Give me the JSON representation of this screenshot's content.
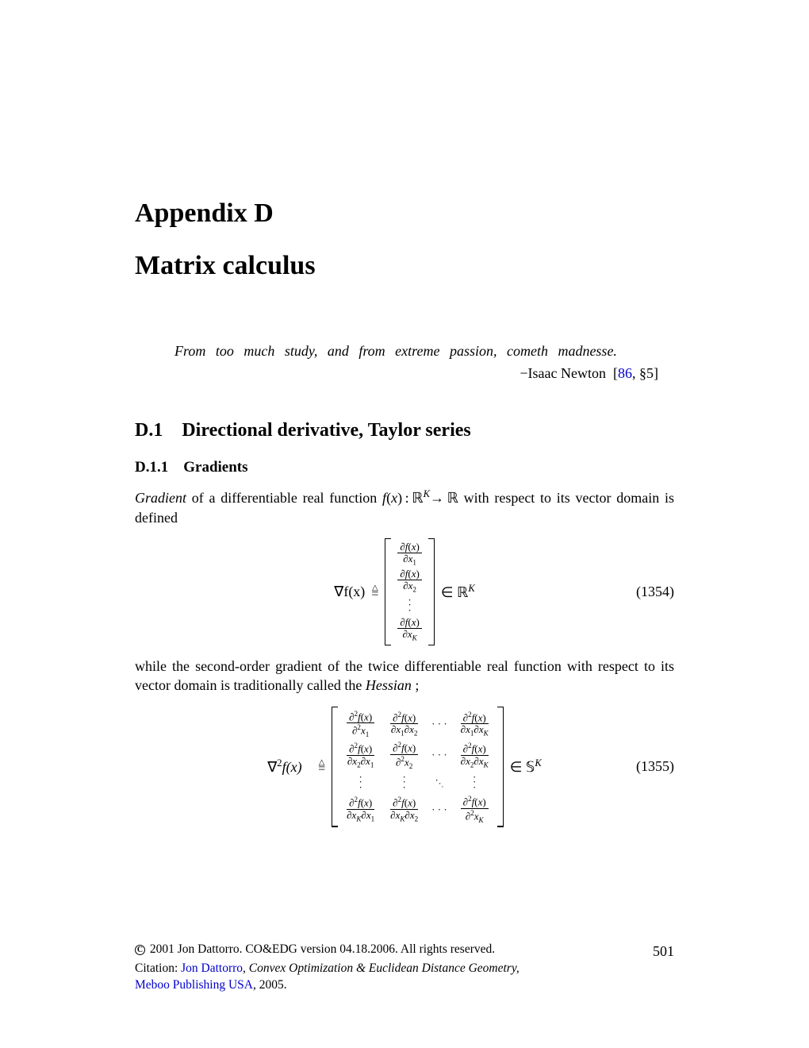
{
  "chapter": {
    "label": "Appendix D",
    "title": "Matrix calculus"
  },
  "quote": {
    "text": "From too much study, and from extreme passion, cometh madnesse.",
    "author": "−Isaac Newton",
    "cite_num": "86",
    "cite_section": ", §5]"
  },
  "section": {
    "number": "D.1",
    "title": "Directional derivative, Taylor series"
  },
  "subsection": {
    "number": "D.1.1",
    "title": "Gradients"
  },
  "paragraph1_a": "Gradient",
  "paragraph1_b": " of a differentiable real function  ",
  "paragraph1_c": "  with respect to its vector domain is defined",
  "eq_gradient": {
    "prefix": "∇f(x)",
    "entries": [
      "∂f(x)",
      "∂x",
      "∂f(x)",
      "∂x",
      "∂f(x)",
      "∂x"
    ],
    "subscripts": [
      "1",
      "2",
      "K"
    ],
    "space": "ℝ",
    "exponent": "K",
    "number": "(1354)"
  },
  "paragraph2": "while the second-order gradient of the twice differentiable real function with respect to its vector domain is traditionally called the ",
  "paragraph2_term": "Hessian",
  "paragraph2_end": " ;",
  "eq_hessian": {
    "prefix": "∇",
    "exponent2": "2",
    "prefix2": "f(x)",
    "space": "𝕊",
    "exponent": "K",
    "number": "(1355)"
  },
  "footer": {
    "copyright": " 2001 Jon Dattorro. CO&EDG version 04.18.2006. All rights reserved.",
    "page": "501",
    "citation_label": "Citation: ",
    "author": "Jon Dattorro",
    "citation_title": ", Convex Optimization & Euclidean Distance Geometry,",
    "publisher": "Meboo Publishing USA",
    "year": ", 2005."
  },
  "colors": {
    "text": "#000000",
    "link": "#0000cc",
    "background": "#ffffff"
  }
}
